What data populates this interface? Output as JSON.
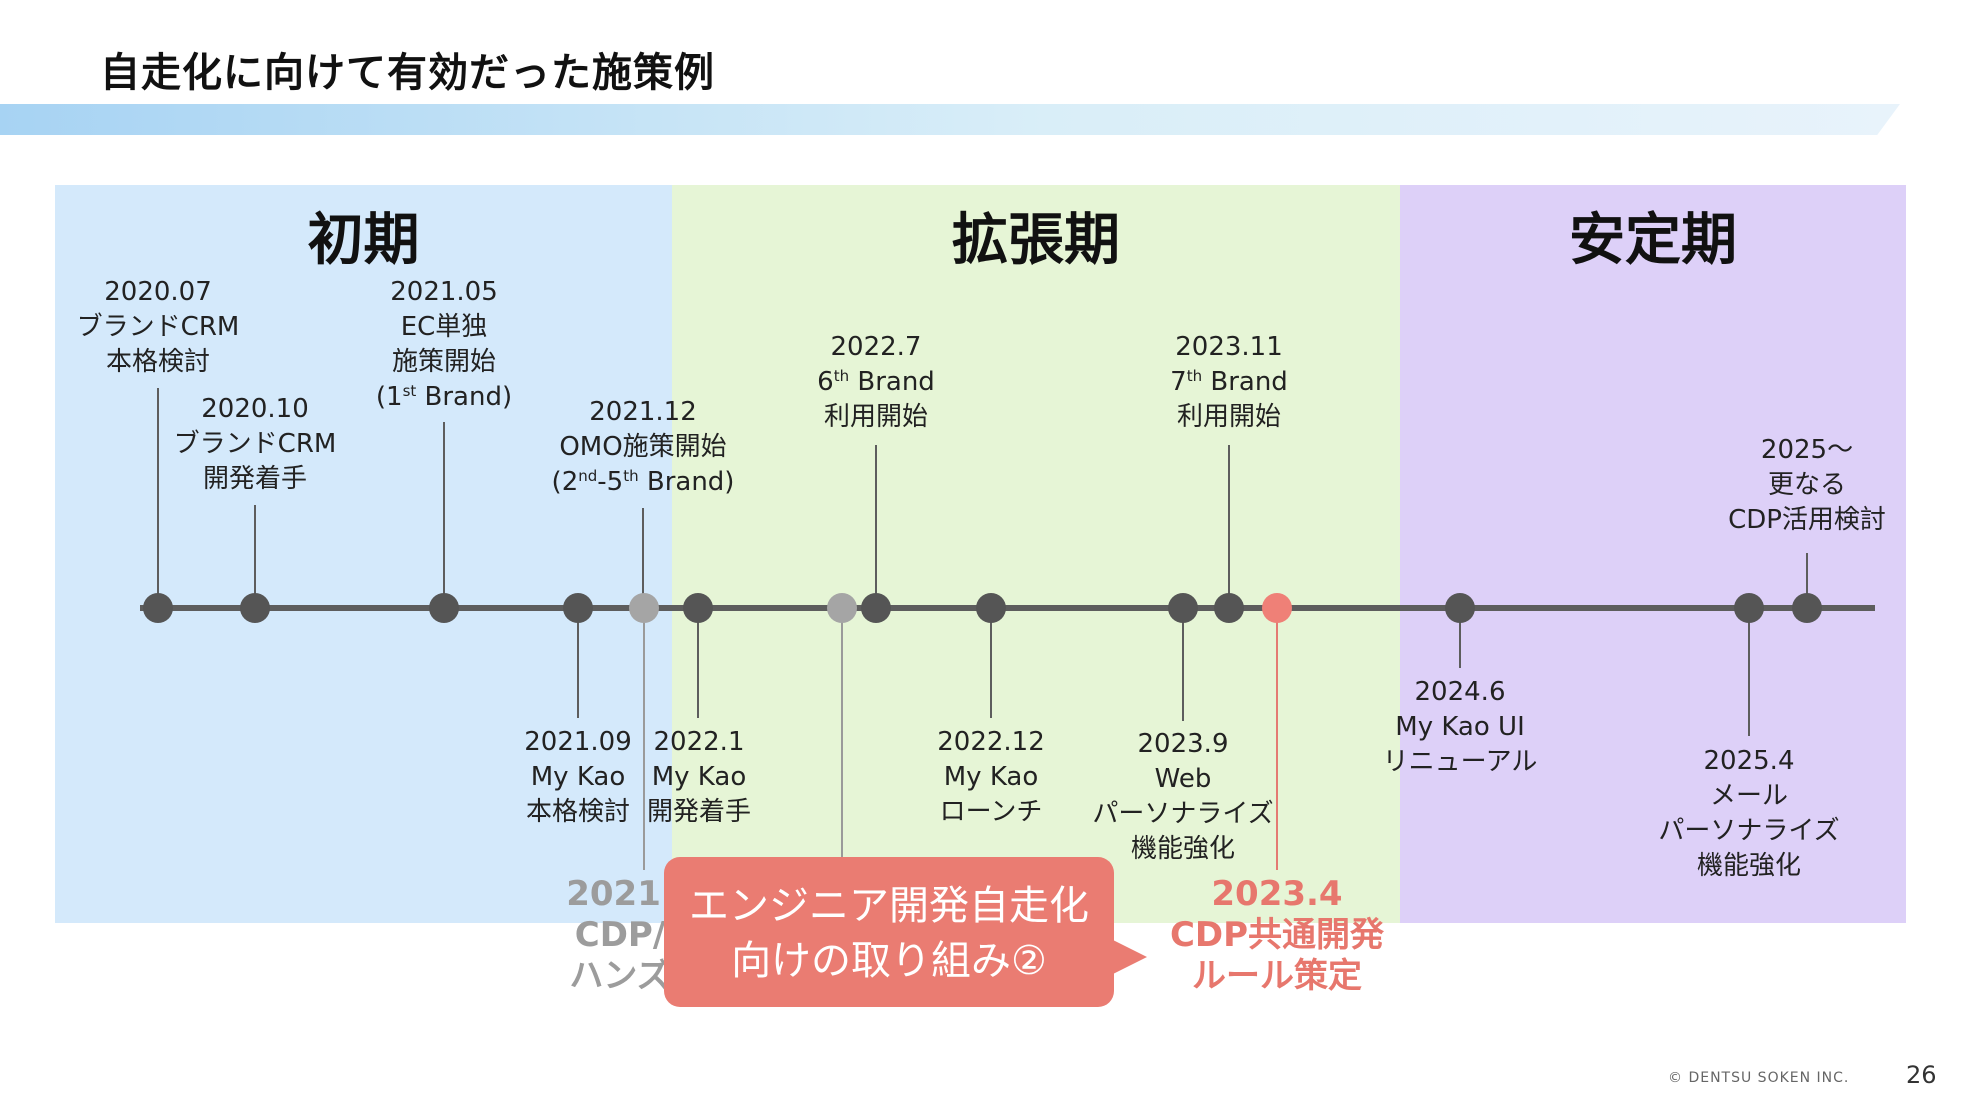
{
  "page": {
    "title": "自走化に向けて有効だった施策例",
    "copyright": "© DENTSU SOKEN INC.",
    "page_number": "26"
  },
  "phases": [
    {
      "id": "initial",
      "label": "初期",
      "color": "#d4e9fb"
    },
    {
      "id": "expansion",
      "label": "拡張期",
      "color": "#e6f5d6"
    },
    {
      "id": "stable",
      "label": "安定期",
      "color": "#ddd0f8"
    }
  ],
  "events": {
    "e2020_07": {
      "date": "2020.07",
      "line1": "ブランドCRM",
      "line2": "本格検討"
    },
    "e2020_10": {
      "date": "2020.10",
      "line1": "ブランドCRM",
      "line2": "開発着手"
    },
    "e2021_05": {
      "date": "2021.05",
      "line1": "EC単独",
      "line2": "施策開始",
      "line3_pre": "(1",
      "line3_sup": "st",
      "line3_post": " Brand)"
    },
    "e2021_12": {
      "date": "2021.12",
      "line1": "OMO施策開始",
      "line2_pre": "(2",
      "line2_sup1": "nd",
      "line2_mid": "-5",
      "line2_sup2": "th",
      "line2_post": " Brand)"
    },
    "e2022_7": {
      "date": "2022.7",
      "line1_pre": "6",
      "line1_sup": "th",
      "line1_post": " Brand",
      "line2": "利用開始"
    },
    "e2023_11": {
      "date": "2023.11",
      "line1_pre": "7",
      "line1_sup": "th",
      "line1_post": " Brand",
      "line2": "利用開始"
    },
    "e2025": {
      "date": "2025～",
      "line1": "更なる",
      "line2": "CDP活用検討"
    },
    "e2021_09": {
      "date": "2021.09",
      "line1": "My Kao",
      "line2": "本格検討"
    },
    "e2022_1": {
      "date": "2022.1",
      "line1": "My Kao",
      "line2": "開発着手"
    },
    "e2022_12": {
      "date": "2022.12",
      "line1": "My Kao",
      "line2": "ローンチ"
    },
    "e2023_9": {
      "date": "2023.9",
      "line1": "Web",
      "line2": "パーソナライズ",
      "line3": "機能強化"
    },
    "e2024_6": {
      "date": "2024.6",
      "line1": "My Kao UI",
      "line2": "リニューアル"
    },
    "e2025_4": {
      "date": "2025.4",
      "line1": "メール",
      "line2": "パーソナライズ",
      "line3": "機能強化"
    },
    "e2021_gray": {
      "date": "2021.",
      "line1": "CDP/",
      "line2": "ハンズ"
    },
    "e2023_4": {
      "date": "2023.4",
      "line1": "CDP共通開発",
      "line2": "ルール策定"
    }
  },
  "callout": {
    "line1": "エンジニア開発自走化",
    "line2": "向けの取り組み②",
    "color": "#ea7c72"
  },
  "colors": {
    "timeline": "#5d5d5d",
    "highlight": "#ef8077",
    "muted": "#a5a5a5"
  }
}
